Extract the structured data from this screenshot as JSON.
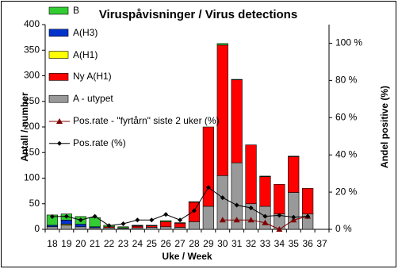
{
  "chart_data": {
    "type": "bar",
    "title": "Viruspåvisninger / Virus detections",
    "xlabel": "Uke / Week",
    "ylabel": "Antall / number",
    "y2label": "Andel positive (%)",
    "categories": [
      "18",
      "19",
      "20",
      "21",
      "22",
      "23",
      "24",
      "25",
      "26",
      "27",
      "28",
      "29",
      "30",
      "31",
      "32",
      "33",
      "34",
      "35",
      "36",
      "37"
    ],
    "stacked": true,
    "series": [
      {
        "name": "A - utypet",
        "color": "#999999",
        "values": [
          5,
          8,
          5,
          3,
          3,
          2,
          3,
          4,
          5,
          4,
          15,
          45,
          105,
          130,
          50,
          45,
          30,
          72,
          30,
          0
        ]
      },
      {
        "name": "Ny A(H1)",
        "color": "#ff0000",
        "values": [
          0,
          0,
          0,
          0,
          2,
          1,
          3,
          3,
          10,
          8,
          38,
          155,
          255,
          162,
          115,
          58,
          58,
          70,
          50,
          0
        ]
      },
      {
        "name": "A(H1)",
        "color": "#ffff00",
        "values": [
          0,
          2,
          0,
          0,
          0,
          0,
          0,
          0,
          0,
          0,
          0,
          0,
          0,
          0,
          0,
          0,
          0,
          0,
          0,
          0
        ]
      },
      {
        "name": "A(H3)",
        "color": "#0033cc",
        "values": [
          3,
          8,
          5,
          2,
          0,
          0,
          1,
          0,
          0,
          0,
          0,
          0,
          0,
          0,
          0,
          0,
          0,
          0,
          0,
          0
        ]
      },
      {
        "name": "B",
        "color": "#33cc33",
        "values": [
          20,
          12,
          15,
          18,
          3,
          2,
          1,
          1,
          2,
          1,
          1,
          0,
          3,
          1,
          0,
          1,
          0,
          1,
          0,
          0
        ]
      },
      {
        "name": "Pos.rate - \"fyrtårn\" siste 2 uker (%)",
        "type": "line",
        "axis": "y2",
        "color": "#800000",
        "marker": "triangle",
        "values": [
          null,
          null,
          null,
          null,
          null,
          null,
          null,
          null,
          null,
          null,
          null,
          null,
          5,
          5,
          5,
          3.5,
          0,
          5,
          7,
          null
        ]
      },
      {
        "name": "Pos.rate (%)",
        "type": "line",
        "axis": "y2",
        "color": "#000000",
        "marker": "diamond",
        "values": [
          6.8,
          7,
          5,
          7,
          2,
          3,
          5,
          5,
          8,
          5,
          10,
          22.5,
          17,
          13,
          11.5,
          7,
          7.5,
          6.5,
          7,
          null
        ]
      }
    ],
    "ylim": [
      0,
      400
    ],
    "yticks": [
      0,
      50,
      100,
      150,
      200,
      250,
      300,
      350,
      400
    ],
    "y2lim": [
      0,
      110
    ],
    "y2ticks": [
      {
        "value": 0,
        "label": "0 %"
      },
      {
        "value": 20,
        "label": "20 %"
      },
      {
        "value": 40,
        "label": "40 %"
      },
      {
        "value": 60,
        "label": "60 %"
      },
      {
        "value": 80,
        "label": "80 %"
      },
      {
        "value": 100,
        "label": "100 %"
      }
    ],
    "grid": false,
    "legend": "left"
  }
}
